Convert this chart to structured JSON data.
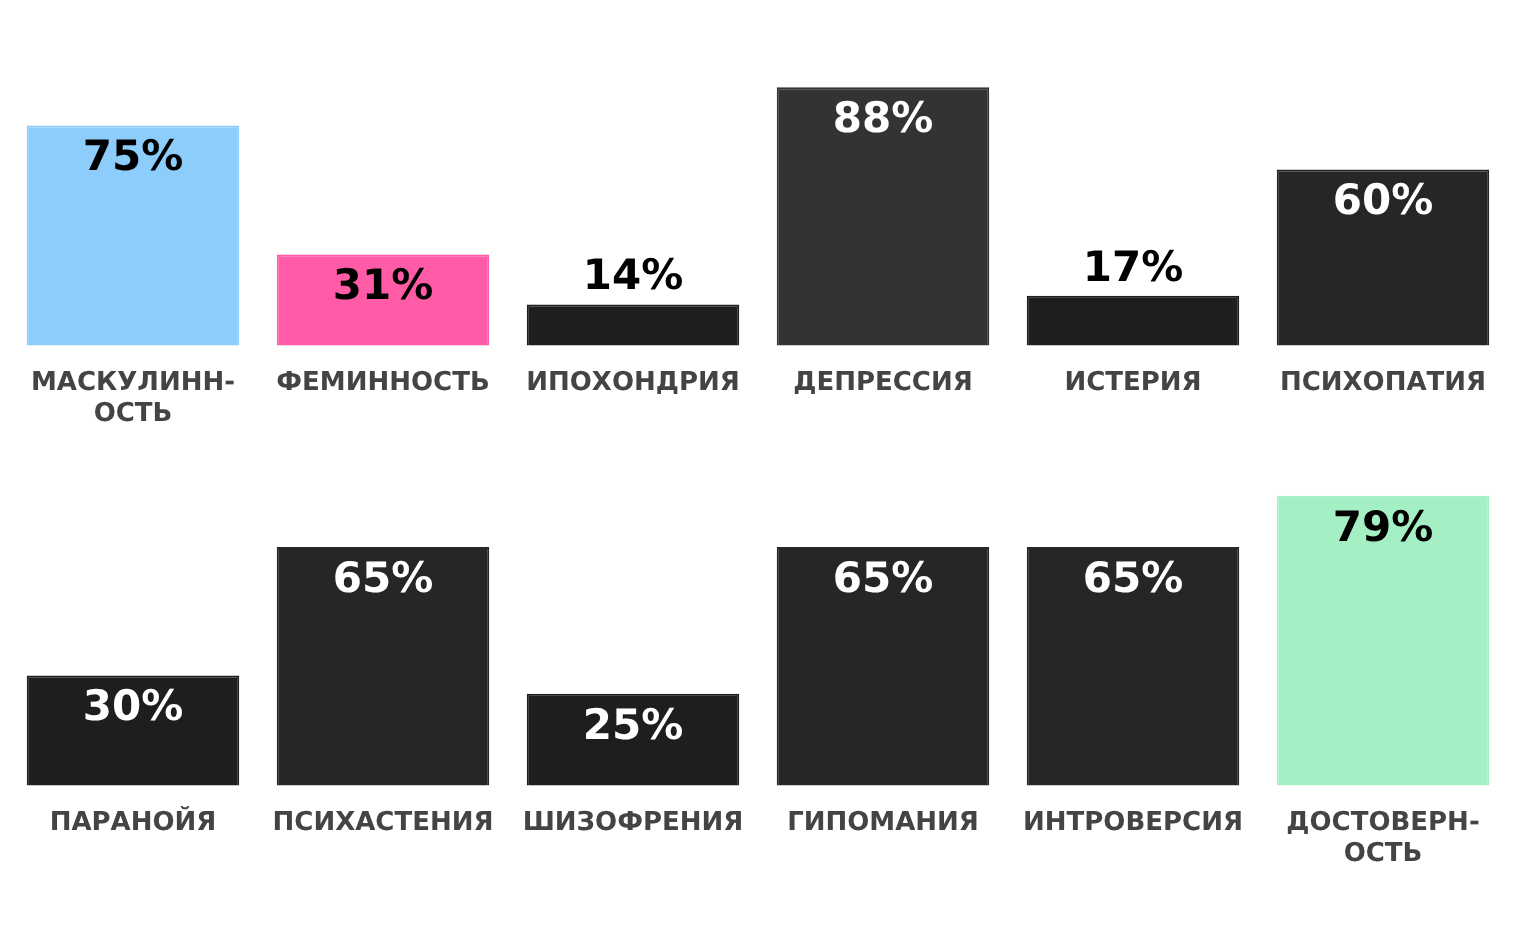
{
  "chart_data": [
    {
      "type": "bar",
      "categories": [
        "МАСКУЛИНН-ОСТЬ",
        "ФЕМИННОСТЬ",
        "ИПОХОНДРИЯ",
        "ДЕПРЕССИЯ",
        "ИСТЕРИЯ",
        "ПСИХОПАТИЯ"
      ],
      "values": [
        75,
        31,
        14,
        88,
        17,
        60
      ],
      "colors": [
        "#8ccdfc",
        "#ff5ba6",
        "#1e1e1e",
        "#333333",
        "#1e1e1e",
        "#262626"
      ],
      "value_labels": [
        "75%",
        "31%",
        "14%",
        "88%",
        "17%",
        "60%"
      ],
      "tick_labels": "x"
    },
    {
      "type": "bar",
      "categories": [
        "ПАРАНОЙЯ",
        "ПСИХАСТЕНИЯ",
        "ШИЗОФРЕНИЯ",
        "ГИПОМАНИЯ",
        "ИНТРОВЕРСИЯ",
        "ДОСТОВЕРН-ОСТЬ"
      ],
      "values": [
        30,
        65,
        25,
        65,
        65,
        79
      ],
      "colors": [
        "#1e1e1e",
        "#262626",
        "#1e1e1e",
        "#262626",
        "#262626",
        "#a4f0c4"
      ],
      "value_labels": [
        "30%",
        "65%",
        "25%",
        "65%",
        "65%",
        "79%"
      ],
      "tick_labels": "x"
    }
  ]
}
